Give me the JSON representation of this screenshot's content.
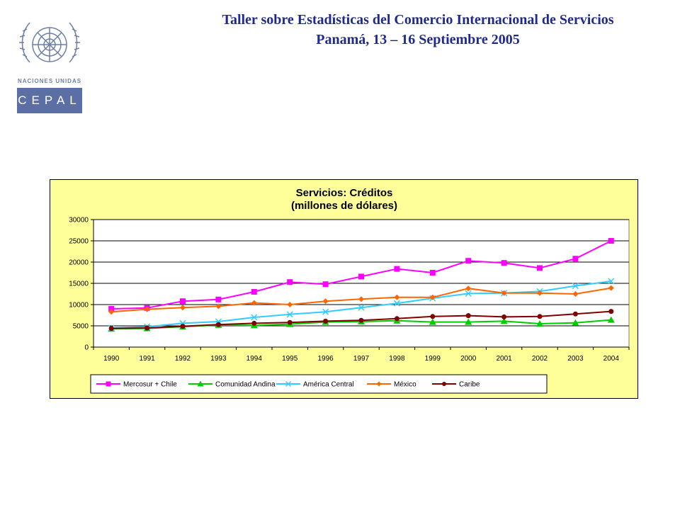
{
  "header": {
    "line1": "Taller sobre Estadísticas del Comercio Internacional de Servicios",
    "line2": "Panamá, 13 – 16 Septiembre 2005"
  },
  "logo": {
    "org": "NACIONES UNIDAS",
    "acronym": "CEPAL"
  },
  "chart_data": {
    "type": "line",
    "title": [
      "Servicios: Créditos",
      "(millones de dólares)"
    ],
    "xlabel": "",
    "ylabel": "",
    "categories": [
      "1990",
      "1991",
      "1992",
      "1993",
      "1994",
      "1995",
      "1996",
      "1997",
      "1998",
      "1999",
      "2000",
      "2001",
      "2002",
      "2003",
      "2004"
    ],
    "ylim": [
      0,
      30000
    ],
    "yticks": [
      "0",
      "5000",
      "10000",
      "15000",
      "20000",
      "25000",
      "30000"
    ],
    "grid": true,
    "legend": "bottom",
    "background": "#ffff99",
    "series": [
      {
        "name": "Mercosur + Chile",
        "color": "#ff00ff",
        "marker": "square",
        "values": [
          9000,
          9200,
          10800,
          11200,
          13000,
          15300,
          14800,
          16600,
          18400,
          17500,
          20300,
          19800,
          18600,
          20800,
          25000
        ]
      },
      {
        "name": "Comunidad Andina",
        "color": "#00cc00",
        "marker": "triangle",
        "values": [
          4300,
          4400,
          4800,
          5200,
          5100,
          5400,
          5900,
          6000,
          6200,
          5900,
          5900,
          6100,
          5500,
          5700,
          6400
        ]
      },
      {
        "name": "América Central",
        "color": "#33ccff",
        "marker": "x",
        "values": [
          4500,
          4800,
          5600,
          6000,
          7000,
          7700,
          8300,
          9300,
          10300,
          11500,
          12600,
          12700,
          13100,
          14400,
          15500
        ]
      },
      {
        "name": "México",
        "color": "#ff6600",
        "marker": "diamond",
        "values": [
          8300,
          8900,
          9300,
          9600,
          10400,
          10000,
          10800,
          11300,
          11700,
          11700,
          13800,
          12700,
          12700,
          12500,
          13900
        ]
      },
      {
        "name": "Caribe",
        "color": "#800000",
        "marker": "circle",
        "values": [
          4400,
          4500,
          4900,
          5300,
          5600,
          5800,
          6100,
          6300,
          6700,
          7200,
          7400,
          7100,
          7200,
          7800,
          8400
        ]
      }
    ]
  }
}
